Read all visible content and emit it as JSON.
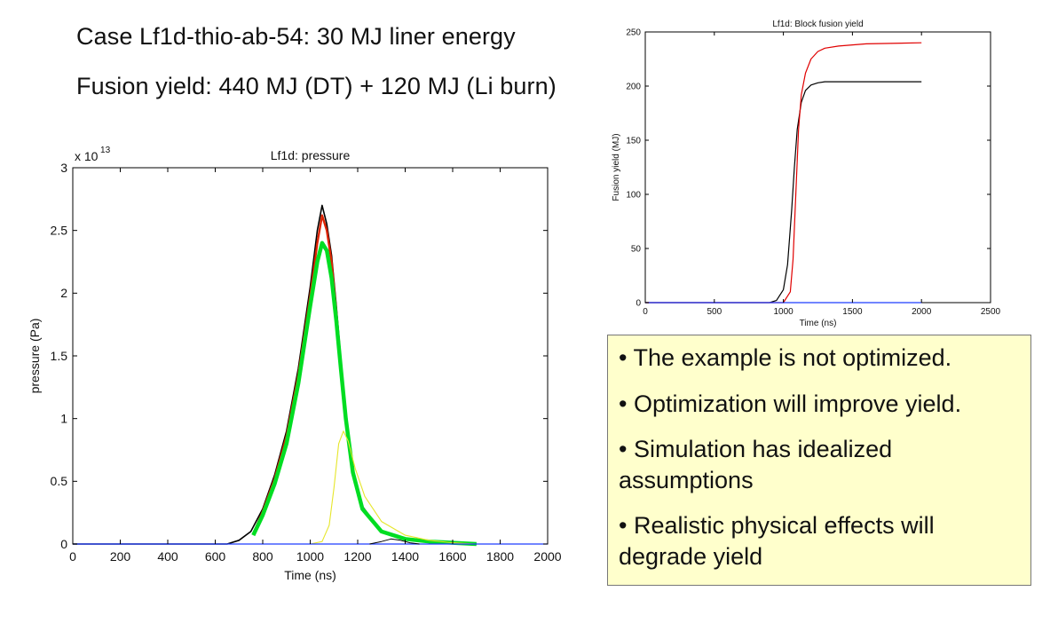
{
  "slide": {
    "heading_case": "Case Lf1d-thio-ab-54: 30 MJ liner energy",
    "heading_yield": "Fusion yield: 440 MJ (DT) + 120 MJ (Li burn)"
  },
  "notes": {
    "items": [
      "• The example is not optimized.",
      "• Optimization will improve yield.",
      "• Simulation has idealized assumptions",
      "• Realistic physical effects will degrade yield"
    ]
  },
  "chart_data": [
    {
      "type": "line",
      "title": "Lf1d: pressure",
      "xlabel": "Time (ns)",
      "ylabel": "pressure (Pa)",
      "y_multiplier": "x 10",
      "y_exponent": "13",
      "xlim": [
        0,
        2000
      ],
      "ylim": [
        0,
        3
      ],
      "xticks": [
        0,
        200,
        400,
        600,
        800,
        1000,
        1200,
        1400,
        1600,
        1800,
        2000
      ],
      "yticks": [
        0,
        0.5,
        1,
        1.5,
        2,
        2.5,
        3
      ],
      "xtick_labels": [
        "0",
        "200",
        "400",
        "600",
        "800",
        "1000",
        "1200",
        "1400",
        "1600",
        "1800",
        "2000"
      ],
      "ytick_labels": [
        "0",
        "0.5",
        "1",
        "1.5",
        "2",
        "2.5",
        "3"
      ],
      "series": [
        {
          "name": "black",
          "color": "#000000",
          "x": [
            0,
            650,
            700,
            750,
            800,
            850,
            900,
            950,
            1000,
            1030,
            1050,
            1070,
            1090,
            1110,
            1130,
            1150,
            1180,
            1220,
            1300,
            1400,
            1500,
            1600,
            1700
          ],
          "y": [
            0,
            0,
            0.03,
            0.1,
            0.28,
            0.55,
            0.9,
            1.4,
            2.05,
            2.5,
            2.7,
            2.55,
            2.3,
            1.9,
            1.45,
            1.05,
            0.6,
            0.3,
            0.1,
            0.04,
            0.02,
            0.01,
            0
          ]
        },
        {
          "name": "red",
          "color": "#dd2200",
          "x": [
            760,
            800,
            850,
            900,
            950,
            1000,
            1030,
            1050,
            1070,
            1090,
            1110,
            1130,
            1150,
            1180,
            1220,
            1300,
            1400,
            1500,
            1600,
            1700
          ],
          "y": [
            0.08,
            0.26,
            0.52,
            0.86,
            1.35,
            1.98,
            2.4,
            2.62,
            2.5,
            2.25,
            1.85,
            1.42,
            1.02,
            0.58,
            0.29,
            0.1,
            0.04,
            0.02,
            0.01,
            0
          ]
        },
        {
          "name": "green",
          "color": "#00dd22",
          "x": [
            760,
            800,
            850,
            900,
            950,
            1000,
            1030,
            1050,
            1070,
            1090,
            1110,
            1130,
            1150,
            1180,
            1220,
            1300,
            1400,
            1500,
            1600,
            1700
          ],
          "y": [
            0.07,
            0.23,
            0.48,
            0.8,
            1.28,
            1.9,
            2.25,
            2.4,
            2.34,
            2.12,
            1.78,
            1.38,
            1.0,
            0.57,
            0.28,
            0.1,
            0.04,
            0.02,
            0.01,
            0
          ]
        },
        {
          "name": "yellow",
          "color": "#e6e62a",
          "x": [
            1000,
            1050,
            1080,
            1100,
            1120,
            1140,
            1160,
            1190,
            1230,
            1300,
            1400,
            1500,
            1600,
            1700
          ],
          "y": [
            0,
            0.02,
            0.15,
            0.45,
            0.8,
            0.9,
            0.82,
            0.6,
            0.38,
            0.18,
            0.07,
            0.03,
            0.01,
            0
          ]
        },
        {
          "name": "blue",
          "color": "#1f3cff",
          "x": [
            0,
            2000
          ],
          "y": [
            0,
            0
          ]
        },
        {
          "name": "black-secondary",
          "color": "#000000",
          "x": [
            1250,
            1300,
            1340,
            1380,
            1420,
            1460
          ],
          "y": [
            0,
            0.02,
            0.04,
            0.03,
            0.01,
            0
          ]
        }
      ]
    },
    {
      "type": "line",
      "title": "Lf1d: Block fusion yield",
      "xlabel": "Time (ns)",
      "ylabel": "Fusion yield (MJ)",
      "xlim": [
        0,
        2500
      ],
      "ylim": [
        0,
        250
      ],
      "xticks": [
        0,
        500,
        1000,
        1500,
        2000,
        2500
      ],
      "yticks": [
        0,
        50,
        100,
        150,
        200,
        250
      ],
      "xtick_labels": [
        "0",
        "500",
        "1000",
        "1500",
        "2000",
        "2500"
      ],
      "ytick_labels": [
        "0",
        "50",
        "100",
        "150",
        "200",
        "250"
      ],
      "series": [
        {
          "name": "black",
          "color": "#000000",
          "x": [
            0,
            900,
            950,
            1000,
            1030,
            1060,
            1080,
            1100,
            1130,
            1160,
            1200,
            1250,
            1300,
            1400,
            1500,
            2000
          ],
          "y": [
            0,
            0,
            2,
            12,
            35,
            85,
            125,
            160,
            185,
            196,
            201,
            203,
            204,
            204,
            204,
            204
          ]
        },
        {
          "name": "red",
          "color": "#e00000",
          "x": [
            0,
            1000,
            1050,
            1070,
            1090,
            1110,
            1130,
            1160,
            1200,
            1250,
            1300,
            1400,
            1500,
            1600,
            2000
          ],
          "y": [
            0,
            0,
            10,
            40,
            100,
            160,
            192,
            212,
            225,
            232,
            235,
            237,
            238,
            239,
            240
          ]
        },
        {
          "name": "blue",
          "color": "#1f3cff",
          "x": [
            0,
            2000
          ],
          "y": [
            0,
            0
          ]
        }
      ]
    }
  ]
}
